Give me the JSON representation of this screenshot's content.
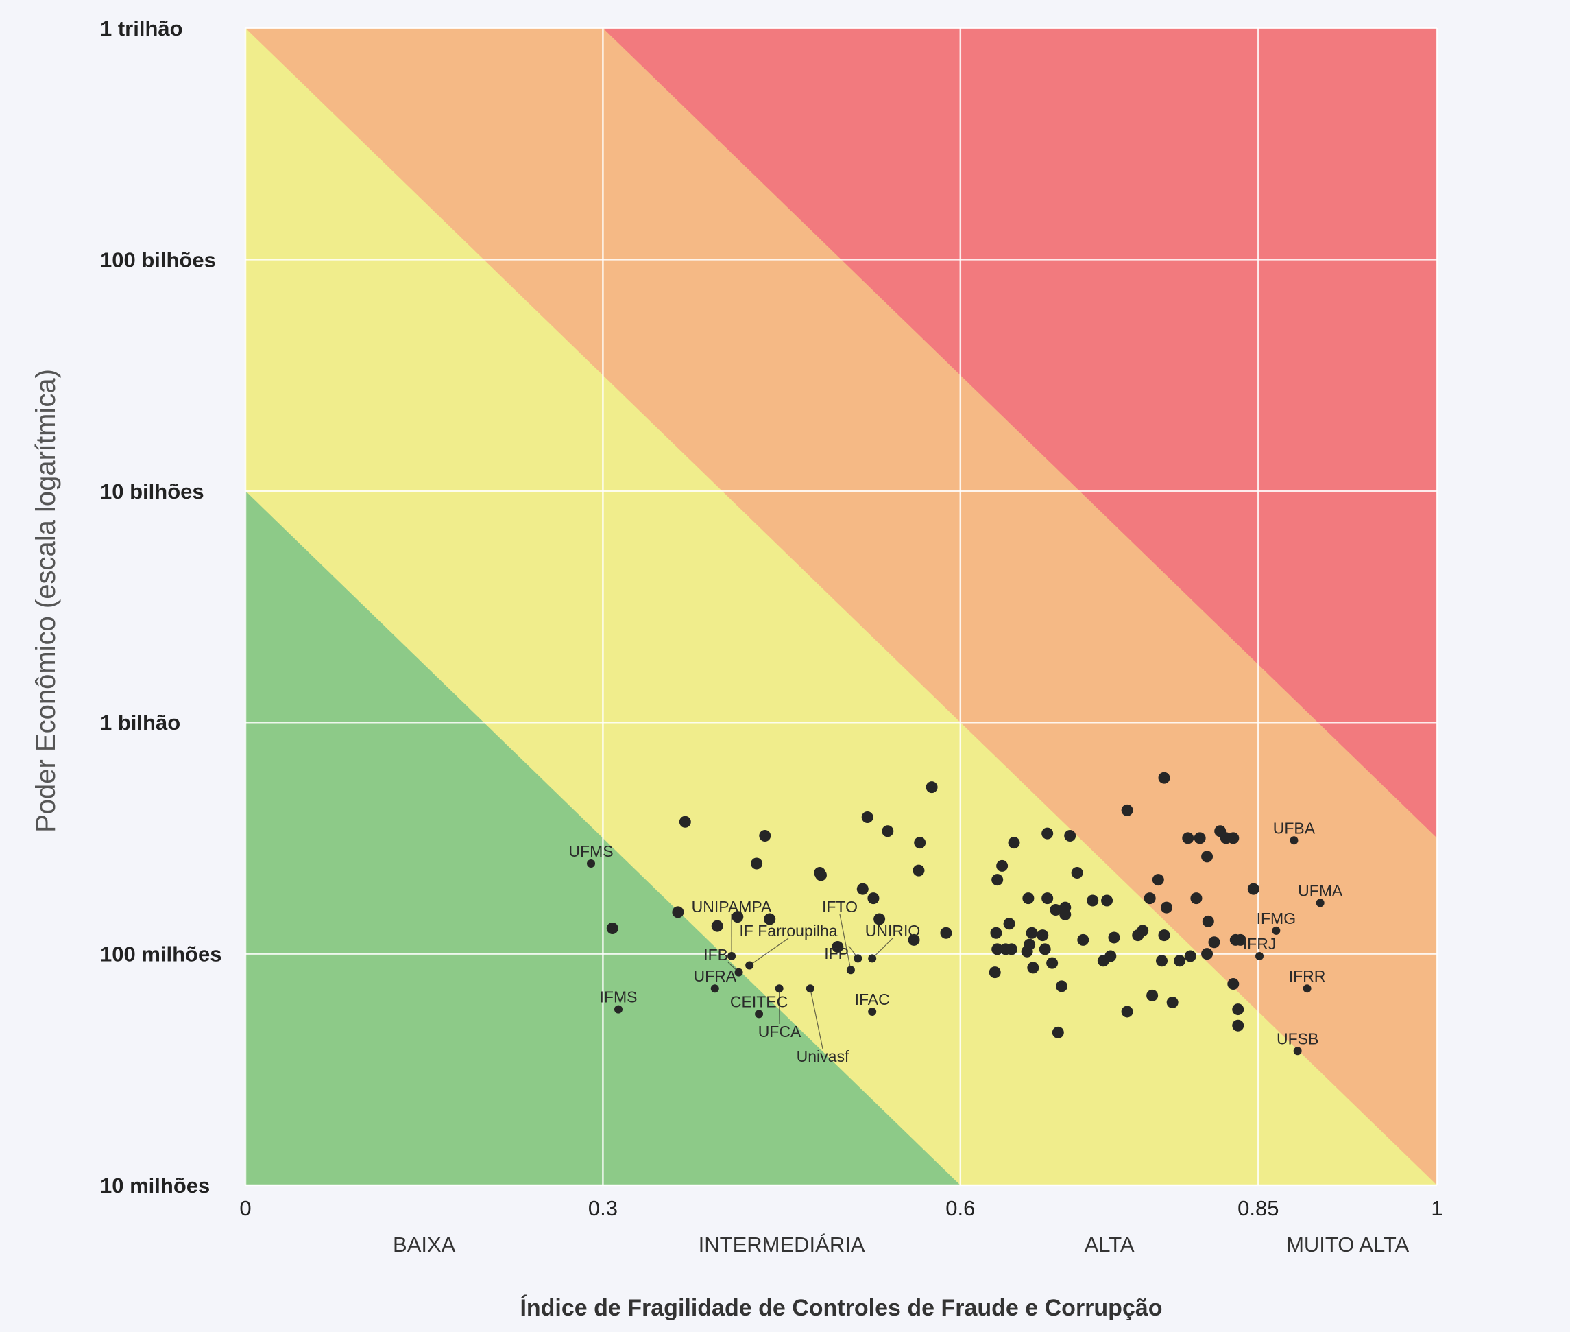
{
  "chart_data": {
    "type": "scatter",
    "title": "",
    "xlabel": "Índice de Fragilidade de Controles de Fraude e Corrupção",
    "ylabel": "Poder Econômico (escala logarítmica)",
    "xlim": [
      0,
      1
    ],
    "ylim_log10": [
      7,
      12
    ],
    "x_ticks": [
      {
        "value": 0,
        "label": "0"
      },
      {
        "value": 0.3,
        "label": "0.3"
      },
      {
        "value": 0.6,
        "label": "0.6"
      },
      {
        "value": 0.85,
        "label": "0.85"
      },
      {
        "value": 1,
        "label": "1"
      }
    ],
    "y_ticks": [
      {
        "log10": 12,
        "label": "1 trilhão"
      },
      {
        "log10": 11,
        "label": "100 bilhões"
      },
      {
        "log10": 10,
        "label": "10 bilhões"
      },
      {
        "log10": 9,
        "label": "1 bilhão"
      },
      {
        "log10": 8,
        "label": "100 milhões"
      },
      {
        "log10": 7,
        "label": "10 milhões"
      }
    ],
    "categories": [
      {
        "label": "BAIXA",
        "from": 0,
        "to": 0.3
      },
      {
        "label": "INTERMEDIÁRIA",
        "from": 0.3,
        "to": 0.6
      },
      {
        "label": "ALTA",
        "from": 0.6,
        "to": 0.85
      },
      {
        "label": "MUITO ALTA",
        "from": 0.85,
        "to": 1
      }
    ],
    "risk_bands": {
      "description_slope_log10_per_x": -5,
      "boundaries_log10_intercept": [
        10,
        12,
        13.5
      ],
      "colors": [
        "#8dca88",
        "#f0ed8c",
        "#f5b985",
        "#f27a7e"
      ]
    },
    "grid": true,
    "point_color": "#262626",
    "labeled_points": [
      {
        "name": "UFMS",
        "x": 0.29,
        "log10_y": 8.39
      },
      {
        "name": "IFMS",
        "x": 0.313,
        "log10_y": 7.76
      },
      {
        "name": "UFRA",
        "x": 0.394,
        "log10_y": 7.85
      },
      {
        "name": "CEITEC",
        "x": 0.431,
        "log10_y": 7.74
      },
      {
        "name": "UNIPAMPA",
        "x": 0.408,
        "log10_y": 7.99
      },
      {
        "name": "IF Farroupilha",
        "x": 0.423,
        "log10_y": 7.95
      },
      {
        "name": "IFB",
        "x": 0.414,
        "log10_y": 7.92
      },
      {
        "name": "UFCA",
        "x": 0.448,
        "log10_y": 7.85
      },
      {
        "name": "Univasf",
        "x": 0.474,
        "log10_y": 7.85
      },
      {
        "name": "IFTO",
        "x": 0.508,
        "log10_y": 7.93
      },
      {
        "name": "UNIRIO",
        "x": 0.526,
        "log10_y": 7.98
      },
      {
        "name": "IFP",
        "x": 0.514,
        "log10_y": 7.98
      },
      {
        "name": "IFAC",
        "x": 0.526,
        "log10_y": 7.75
      },
      {
        "name": "UFBA",
        "x": 0.88,
        "log10_y": 8.49
      },
      {
        "name": "UFMA",
        "x": 0.902,
        "log10_y": 8.22
      },
      {
        "name": "IFMG",
        "x": 0.865,
        "log10_y": 8.1
      },
      {
        "name": "IFRJ",
        "x": 0.851,
        "log10_y": 7.99
      },
      {
        "name": "IFRR",
        "x": 0.891,
        "log10_y": 7.85
      },
      {
        "name": "UFSB",
        "x": 0.883,
        "log10_y": 7.58
      }
    ],
    "points": [
      [
        0.369,
        8.57
      ],
      [
        0.436,
        8.51
      ],
      [
        0.429,
        8.39
      ],
      [
        0.482,
        8.35
      ],
      [
        0.483,
        8.34
      ],
      [
        0.522,
        8.59
      ],
      [
        0.539,
        8.53
      ],
      [
        0.576,
        8.72
      ],
      [
        0.566,
        8.48
      ],
      [
        0.565,
        8.36
      ],
      [
        0.518,
        8.28
      ],
      [
        0.527,
        8.24
      ],
      [
        0.532,
        8.15
      ],
      [
        0.363,
        8.18
      ],
      [
        0.308,
        8.11
      ],
      [
        0.396,
        8.12
      ],
      [
        0.413,
        8.16
      ],
      [
        0.44,
        8.15
      ],
      [
        0.497,
        8.03
      ],
      [
        0.561,
        8.06
      ],
      [
        0.588,
        8.09
      ],
      [
        0.771,
        8.76
      ],
      [
        0.74,
        8.62
      ],
      [
        0.673,
        8.52
      ],
      [
        0.692,
        8.51
      ],
      [
        0.645,
        8.48
      ],
      [
        0.635,
        8.38
      ],
      [
        0.631,
        8.32
      ],
      [
        0.698,
        8.35
      ],
      [
        0.791,
        8.5
      ],
      [
        0.801,
        8.5
      ],
      [
        0.818,
        8.53
      ],
      [
        0.823,
        8.5
      ],
      [
        0.829,
        8.5
      ],
      [
        0.807,
        8.42
      ],
      [
        0.766,
        8.32
      ],
      [
        0.846,
        8.28
      ],
      [
        0.759,
        8.24
      ],
      [
        0.773,
        8.2
      ],
      [
        0.798,
        8.24
      ],
      [
        0.808,
        8.14
      ],
      [
        0.657,
        8.24
      ],
      [
        0.673,
        8.24
      ],
      [
        0.68,
        8.19
      ],
      [
        0.688,
        8.2
      ],
      [
        0.688,
        8.17
      ],
      [
        0.711,
        8.23
      ],
      [
        0.723,
        8.23
      ],
      [
        0.641,
        8.13
      ],
      [
        0.63,
        8.09
      ],
      [
        0.66,
        8.09
      ],
      [
        0.669,
        8.08
      ],
      [
        0.703,
        8.06
      ],
      [
        0.729,
        8.07
      ],
      [
        0.749,
        8.08
      ],
      [
        0.753,
        8.1
      ],
      [
        0.771,
        8.08
      ],
      [
        0.831,
        8.06
      ],
      [
        0.835,
        8.06
      ],
      [
        0.813,
        8.05
      ],
      [
        0.807,
        8.0
      ],
      [
        0.793,
        7.99
      ],
      [
        0.784,
        7.97
      ],
      [
        0.769,
        7.97
      ],
      [
        0.726,
        7.99
      ],
      [
        0.72,
        7.97
      ],
      [
        0.631,
        8.02
      ],
      [
        0.638,
        8.02
      ],
      [
        0.643,
        8.02
      ],
      [
        0.656,
        8.01
      ],
      [
        0.658,
        8.04
      ],
      [
        0.671,
        8.02
      ],
      [
        0.677,
        7.96
      ],
      [
        0.661,
        7.94
      ],
      [
        0.629,
        7.92
      ],
      [
        0.685,
        7.86
      ],
      [
        0.829,
        7.87
      ],
      [
        0.761,
        7.82
      ],
      [
        0.778,
        7.79
      ],
      [
        0.74,
        7.75
      ],
      [
        0.833,
        7.76
      ],
      [
        0.833,
        7.69
      ],
      [
        0.682,
        7.66
      ]
    ]
  }
}
